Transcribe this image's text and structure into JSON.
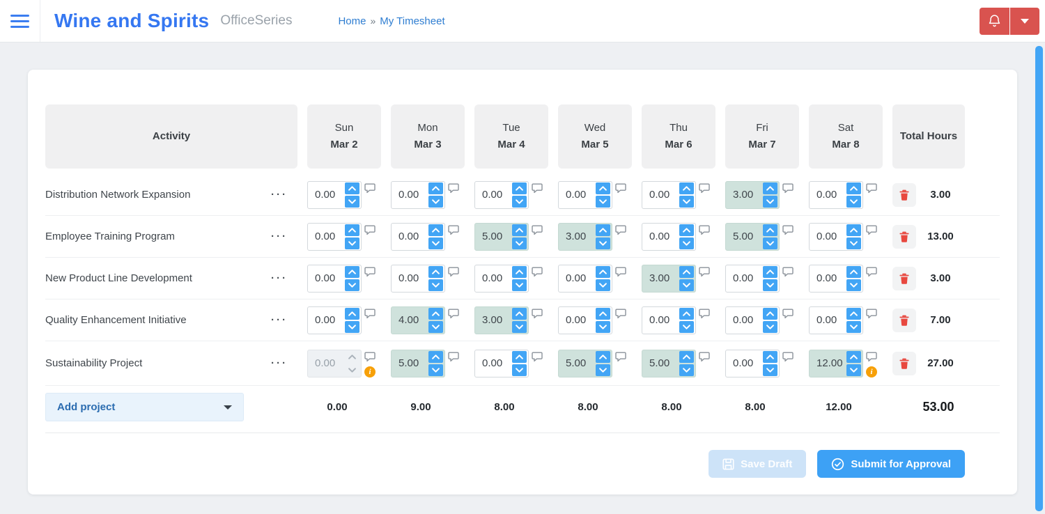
{
  "topbar": {
    "title": "Wine and Spirits",
    "product": "OfficeSeries",
    "breadcrumb": {
      "home": "Home",
      "separator": "»",
      "current": "My Timesheet"
    }
  },
  "colors": {
    "accent_blue": "#42a5f5",
    "danger_red": "#d9534f",
    "highlight_teal": "#cfe2dc",
    "warning_orange": "#f7a008",
    "link_blue": "#2e7dd1"
  },
  "table": {
    "activity_header": "Activity",
    "total_header": "Total Hours",
    "days": [
      {
        "name": "Sun",
        "date": "Mar 2"
      },
      {
        "name": "Mon",
        "date": "Mar 3"
      },
      {
        "name": "Tue",
        "date": "Mar 4"
      },
      {
        "name": "Wed",
        "date": "Mar 5"
      },
      {
        "name": "Thu",
        "date": "Mar 6"
      },
      {
        "name": "Fri",
        "date": "Mar 7"
      },
      {
        "name": "Sat",
        "date": "Mar 8"
      }
    ],
    "rows": [
      {
        "label": "Distribution Network Expansion",
        "total": "3.00",
        "cells": [
          {
            "value": "0.00"
          },
          {
            "value": "0.00"
          },
          {
            "value": "0.00"
          },
          {
            "value": "0.00"
          },
          {
            "value": "0.00"
          },
          {
            "value": "3.00",
            "highlight": true
          },
          {
            "value": "0.00"
          }
        ]
      },
      {
        "label": "Employee Training Program",
        "total": "13.00",
        "cells": [
          {
            "value": "0.00"
          },
          {
            "value": "0.00"
          },
          {
            "value": "5.00",
            "highlight": true
          },
          {
            "value": "3.00",
            "highlight": true
          },
          {
            "value": "0.00"
          },
          {
            "value": "5.00",
            "highlight": true
          },
          {
            "value": "0.00"
          }
        ]
      },
      {
        "label": "New Product Line Development",
        "total": "3.00",
        "cells": [
          {
            "value": "0.00"
          },
          {
            "value": "0.00"
          },
          {
            "value": "0.00"
          },
          {
            "value": "0.00"
          },
          {
            "value": "3.00",
            "highlight": true
          },
          {
            "value": "0.00"
          },
          {
            "value": "0.00"
          }
        ]
      },
      {
        "label": "Quality Enhancement Initiative",
        "total": "7.00",
        "cells": [
          {
            "value": "0.00"
          },
          {
            "value": "4.00",
            "highlight": true
          },
          {
            "value": "3.00",
            "highlight": true
          },
          {
            "value": "0.00"
          },
          {
            "value": "0.00"
          },
          {
            "value": "0.00"
          },
          {
            "value": "0.00"
          }
        ]
      },
      {
        "label": "Sustainability Project",
        "total": "27.00",
        "cells": [
          {
            "value": "0.00",
            "disabled": true,
            "info": true
          },
          {
            "value": "5.00",
            "highlight": true
          },
          {
            "value": "0.00"
          },
          {
            "value": "5.00",
            "highlight": true
          },
          {
            "value": "5.00",
            "highlight": true
          },
          {
            "value": "0.00"
          },
          {
            "value": "12.00",
            "highlight": true,
            "info": true
          }
        ]
      }
    ],
    "footer": {
      "add_project_label": "Add project",
      "day_totals": [
        "0.00",
        "9.00",
        "8.00",
        "8.00",
        "8.00",
        "8.00",
        "12.00"
      ],
      "grand_total": "53.00"
    }
  },
  "actions": {
    "save_draft": "Save Draft",
    "submit": "Submit for Approval"
  }
}
